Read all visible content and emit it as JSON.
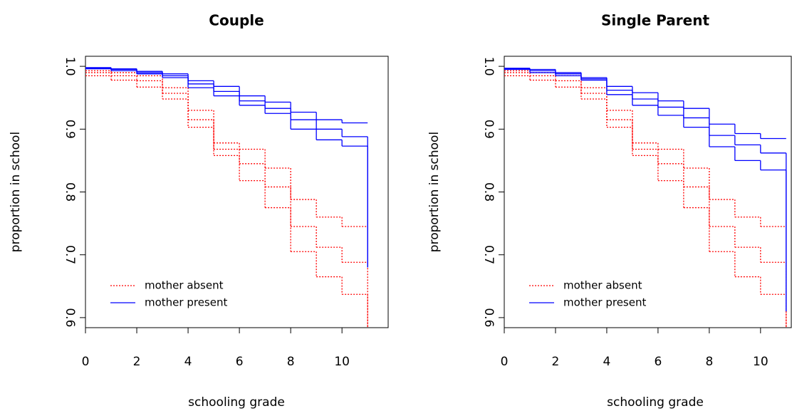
{
  "chart_data": [
    {
      "type": "step",
      "title": "Couple",
      "xlabel": "schooling grade",
      "ylabel": "proportion in school",
      "x": [
        0,
        1,
        2,
        3,
        4,
        5,
        6,
        7,
        8,
        9,
        10,
        11
      ],
      "series": [
        {
          "name": "mother absent",
          "color": "#ff0000",
          "dashed": true,
          "values": [
            0.99,
            0.985,
            0.977,
            0.957,
            0.915,
            0.868,
            0.845,
            0.808,
            0.745,
            0.712,
            0.688,
            0.585
          ],
          "upper": [
            0.993,
            0.99,
            0.985,
            0.966,
            0.93,
            0.878,
            0.868,
            0.838,
            0.788,
            0.76,
            0.745,
            0.745
          ],
          "lower": [
            0.985,
            0.978,
            0.967,
            0.948,
            0.903,
            0.858,
            0.818,
            0.775,
            0.705,
            0.665,
            0.637,
            0.585
          ]
        },
        {
          "name": "mother present",
          "color": "#0000ff",
          "dashed": false,
          "values": [
            0.997,
            0.995,
            0.99,
            0.985,
            0.972,
            0.96,
            0.945,
            0.933,
            0.915,
            0.9,
            0.888,
            0.68
          ],
          "upper": [
            0.998,
            0.996,
            0.992,
            0.988,
            0.977,
            0.968,
            0.953,
            0.943,
            0.927,
            0.915,
            0.91,
            0.91
          ],
          "lower": [
            0.996,
            0.993,
            0.988,
            0.982,
            0.966,
            0.953,
            0.938,
            0.925,
            0.9,
            0.883,
            0.873,
            0.68
          ]
        }
      ],
      "xlim": [
        0,
        11.8
      ],
      "ylim": [
        0.584,
        1.016
      ],
      "xticks": [
        0,
        2,
        4,
        6,
        8,
        10
      ],
      "yticks": [
        0.6,
        0.7,
        0.8,
        0.9,
        {
          "value": 1,
          "label": "1.0"
        }
      ],
      "legend": "bottom-left"
    },
    {
      "type": "step",
      "title": "Single Parent",
      "xlabel": "schooling grade",
      "ylabel": "proportion in school",
      "x": [
        0,
        1,
        2,
        3,
        4,
        5,
        6,
        7,
        8,
        9,
        10,
        11
      ],
      "series": [
        {
          "name": "mother absent",
          "color": "#ff0000",
          "dashed": true,
          "values": [
            0.99,
            0.985,
            0.977,
            0.957,
            0.915,
            0.868,
            0.845,
            0.808,
            0.745,
            0.712,
            0.688,
            0.585
          ],
          "upper": [
            0.993,
            0.99,
            0.985,
            0.966,
            0.93,
            0.878,
            0.868,
            0.838,
            0.788,
            0.76,
            0.745,
            0.745
          ],
          "lower": [
            0.985,
            0.978,
            0.967,
            0.948,
            0.903,
            0.858,
            0.818,
            0.775,
            0.705,
            0.665,
            0.637,
            0.585
          ]
        },
        {
          "name": "mother present",
          "color": "#0000ff",
          "dashed": false,
          "values": [
            0.996,
            0.993,
            0.988,
            0.98,
            0.962,
            0.948,
            0.935,
            0.918,
            0.89,
            0.875,
            0.862,
            0.61
          ],
          "upper": [
            0.997,
            0.995,
            0.99,
            0.982,
            0.968,
            0.958,
            0.945,
            0.933,
            0.908,
            0.893,
            0.885,
            0.885
          ],
          "lower": [
            0.995,
            0.99,
            0.985,
            0.978,
            0.955,
            0.938,
            0.922,
            0.903,
            0.872,
            0.85,
            0.835,
            0.61
          ]
        }
      ],
      "xlim": [
        0,
        11.2
      ],
      "ylim": [
        0.584,
        1.016
      ],
      "xticks": [
        0,
        2,
        4,
        6,
        8,
        10
      ],
      "yticks": [
        0.6,
        0.7,
        0.8,
        0.9,
        {
          "value": 1,
          "label": "1.0"
        }
      ],
      "legend": "bottom-left"
    }
  ]
}
